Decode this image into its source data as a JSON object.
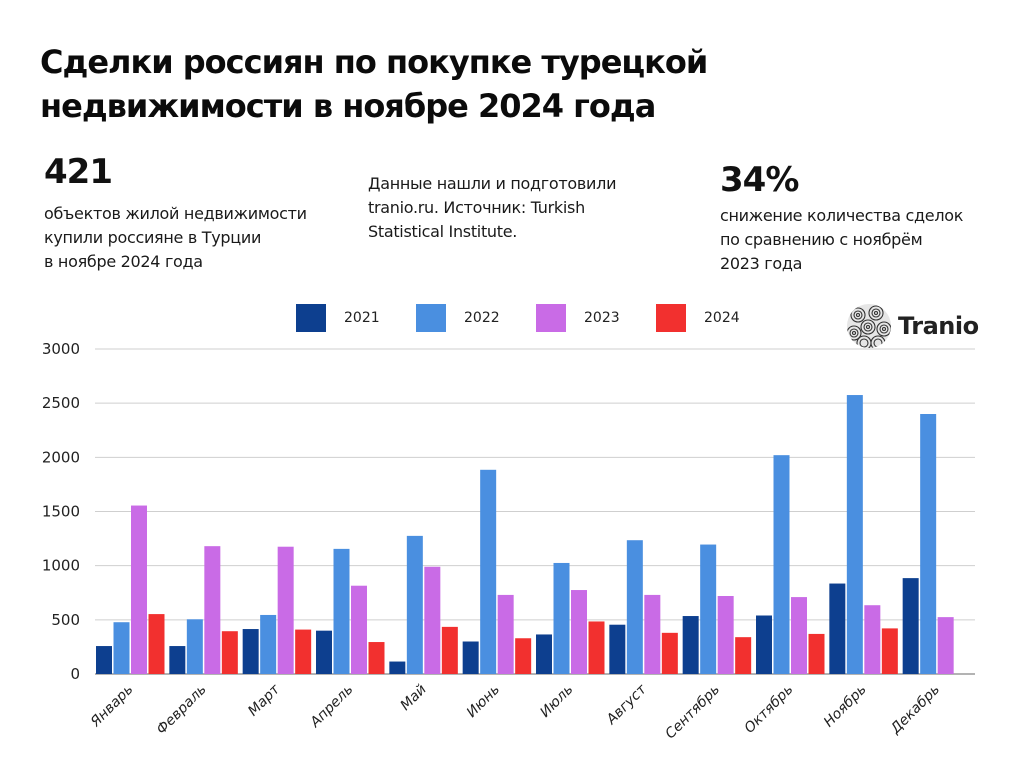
{
  "title": "Сделки россиян по покупке турецкой недвижимости в ноябре 2024 года",
  "stats": {
    "left": {
      "value": "421",
      "lines": [
        "объектов жилой недвижимости",
        "купили россияне в Турции",
        "в ноябре 2024 года"
      ]
    },
    "middle": {
      "lines": [
        "Данные нашли и подготовили",
        "tranio.ru. Источник: Turkish",
        "Statistical Institute."
      ]
    },
    "right": {
      "value": "34%",
      "lines": [
        "снижение количества сделок",
        "по сравнению с ноябрём",
        "2023 года"
      ]
    }
  },
  "logo": {
    "text": "Tranio",
    "icon": "spiral-globe-icon"
  },
  "colors": {
    "2021": "#0d3f8f",
    "2022": "#4a8fe0",
    "2023": "#c96be6",
    "2024": "#f2302f",
    "grid": "#cfcfcf",
    "axis": "#9a9a9a"
  },
  "chart_data": {
    "type": "bar",
    "title": "Сделки россиян по покупке турецкой недвижимости",
    "xlabel": "",
    "ylabel": "",
    "ylim": [
      0,
      3000
    ],
    "yticks": [
      0,
      500,
      1000,
      1500,
      2000,
      2500,
      3000
    ],
    "grid": true,
    "legend_position": "top-center",
    "categories": [
      "Январь",
      "Февраль",
      "Март",
      "Апрель",
      "Май",
      "Июнь",
      "Июль",
      "Август",
      "Сентябрь",
      "Октябрь",
      "Ноябрь",
      "Декабрь"
    ],
    "series": [
      {
        "name": "2021",
        "values": [
          258,
          258,
          415,
          400,
          115,
          300,
          365,
          455,
          535,
          540,
          835,
          885
        ]
      },
      {
        "name": "2022",
        "values": [
          478,
          505,
          545,
          1155,
          1275,
          1885,
          1025,
          1235,
          1195,
          2020,
          2575,
          2400
        ]
      },
      {
        "name": "2023",
        "values": [
          1555,
          1180,
          1175,
          815,
          990,
          730,
          775,
          730,
          720,
          710,
          635,
          525
        ]
      },
      {
        "name": "2024",
        "values": [
          553,
          395,
          410,
          295,
          435,
          330,
          485,
          380,
          340,
          370,
          421,
          null
        ]
      }
    ]
  }
}
